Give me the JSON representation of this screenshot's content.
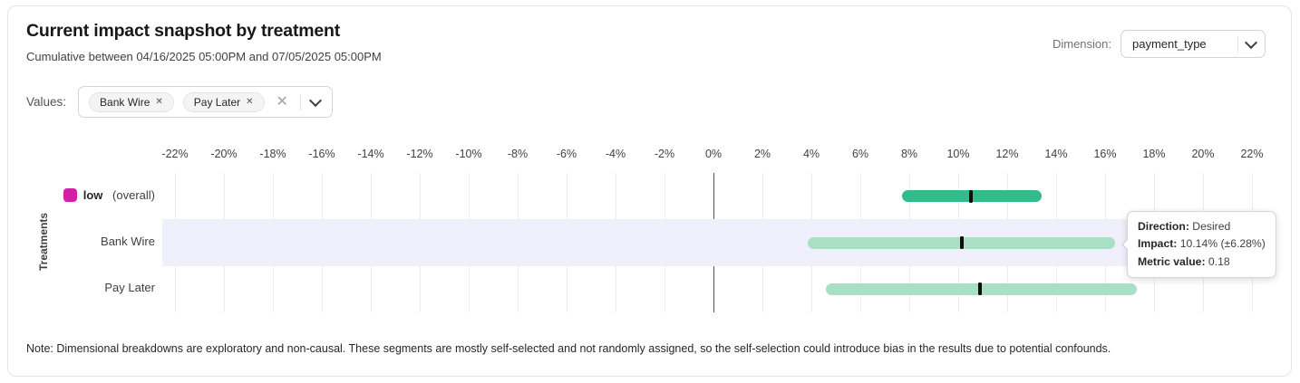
{
  "header": {
    "title": "Current impact snapshot by treatment",
    "subtitle": "Cumulative between 04/16/2025 05:00PM and 07/05/2025 05:00PM",
    "dimension_label": "Dimension:",
    "dimension_value": "payment_type"
  },
  "filters": {
    "values_label": "Values:",
    "chips": [
      {
        "label": "Bank Wire"
      },
      {
        "label": "Pay Later"
      }
    ]
  },
  "chart_data": {
    "type": "bar",
    "orientation": "horizontal",
    "subtype": "confidence-interval-ranges",
    "title": "",
    "xlabel": "",
    "ylabel": "Treatments",
    "units": "%",
    "xlim": [
      -22,
      22
    ],
    "grid": true,
    "zero_line": true,
    "x_ticks": [
      -22,
      -20,
      -18,
      -16,
      -14,
      -12,
      -10,
      -8,
      -6,
      -4,
      -2,
      0,
      2,
      4,
      6,
      8,
      10,
      12,
      14,
      16,
      18,
      20,
      22
    ],
    "x_tick_labels": [
      "-22%",
      "-20%",
      "-18%",
      "-16%",
      "-14%",
      "-12%",
      "-10%",
      "-8%",
      "-6%",
      "-4%",
      "-2%",
      "0%",
      "2%",
      "4%",
      "6%",
      "8%",
      "10%",
      "12%",
      "14%",
      "16%",
      "18%",
      "20%",
      "22%"
    ],
    "rows": [
      {
        "label": "low",
        "suffix": "(overall)",
        "swatch_color": "#d220a8",
        "bar_color": "#35ba8c",
        "impact": 10.5,
        "ci_low": 7.7,
        "ci_high": 13.4,
        "highlighted": false
      },
      {
        "label": "Bank Wire",
        "bar_color": "#a9dfc2",
        "impact": 10.14,
        "ci_low": 3.86,
        "ci_high": 16.42,
        "highlighted": true
      },
      {
        "label": "Pay Later",
        "bar_color": "#a9dfc2",
        "impact": 10.9,
        "ci_low": 4.6,
        "ci_high": 17.3,
        "highlighted": false
      }
    ]
  },
  "tooltip": {
    "rows": [
      {
        "label": "Direction:",
        "value": "Desired"
      },
      {
        "label": "Impact:",
        "value": "10.14% (±6.28%)"
      },
      {
        "label": "Metric value:",
        "value": "0.18"
      }
    ]
  },
  "note": "Note: Dimensional breakdowns are exploratory and non-causal. These segments are mostly self-selected and not randomly assigned, so the self-selection could introduce bias in the results due to potential confounds."
}
